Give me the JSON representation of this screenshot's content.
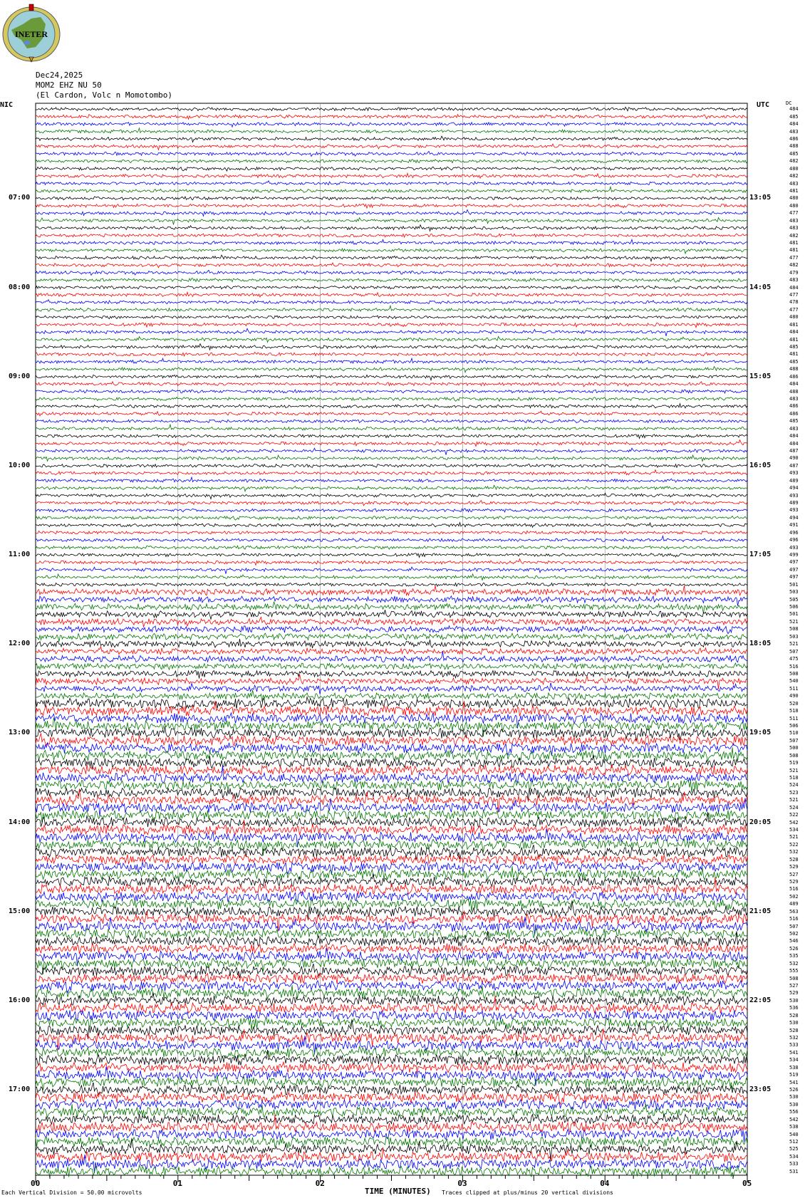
{
  "logo": {
    "text": "INETER"
  },
  "header": {
    "date": "Dec24,2025",
    "station": "MOM2 EHZ NU 50",
    "location": "(El Cardon, Volc n Momotombo)"
  },
  "left_zone": "NIC",
  "right_zone": "UTC",
  "right_col_header": "DC",
  "colors": [
    "#000000",
    "#ff0000",
    "#0000ff",
    "#007700"
  ],
  "chart_data": {
    "type": "line",
    "title": "",
    "xlabel": "TIME (MINUTES)",
    "x_ticks": [
      "00",
      "01",
      "02",
      "03",
      "04",
      "05"
    ],
    "xlim": [
      0,
      5
    ],
    "left_time_labels": [
      "07:00",
      "08:00",
      "09:00",
      "10:00",
      "11:00",
      "12:00",
      "13:00",
      "14:00",
      "15:00",
      "16:00",
      "17:00"
    ],
    "right_time_labels": [
      "13:05",
      "14:05",
      "15:05",
      "16:05",
      "17:05",
      "18:05",
      "19:05",
      "20:05",
      "21:05",
      "22:05",
      "23:05"
    ],
    "rows_per_hour": 12,
    "trace_offsets": [
      484,
      485,
      484,
      483,
      486,
      488,
      485,
      482,
      480,
      482,
      483,
      481,
      480,
      480,
      477,
      483,
      483,
      482,
      481,
      481,
      477,
      482,
      479,
      483,
      484,
      477,
      478,
      477,
      480,
      481,
      484,
      481,
      485,
      481,
      485,
      488,
      486,
      484,
      488,
      483,
      486,
      486,
      485,
      483,
      484,
      484,
      487,
      490,
      487,
      493,
      489,
      494,
      493,
      489,
      493,
      494,
      491,
      496,
      496,
      493,
      499,
      497,
      497,
      497,
      501,
      503,
      505,
      506,
      501,
      521,
      508,
      503,
      521,
      507,
      475,
      516,
      508,
      540,
      511,
      490,
      520,
      518,
      511,
      506,
      510,
      507,
      500,
      508,
      519,
      521,
      518,
      524,
      523,
      521,
      524,
      522,
      542,
      534,
      521,
      522,
      532,
      528,
      529,
      527,
      529,
      516,
      502,
      489,
      563,
      516,
      507,
      502,
      546,
      526,
      535,
      532,
      555,
      508,
      527,
      529,
      530,
      536,
      528,
      530,
      528,
      532,
      533,
      541,
      534,
      538,
      519,
      541,
      526,
      530,
      530,
      556,
      542,
      538,
      540,
      512,
      525,
      534,
      533,
      531
    ]
  },
  "footer": {
    "scale": "Each Vertical Division =    50.00 microvolts",
    "clip_note": "Traces clipped at plus/minus 20 vertical divisions"
  }
}
